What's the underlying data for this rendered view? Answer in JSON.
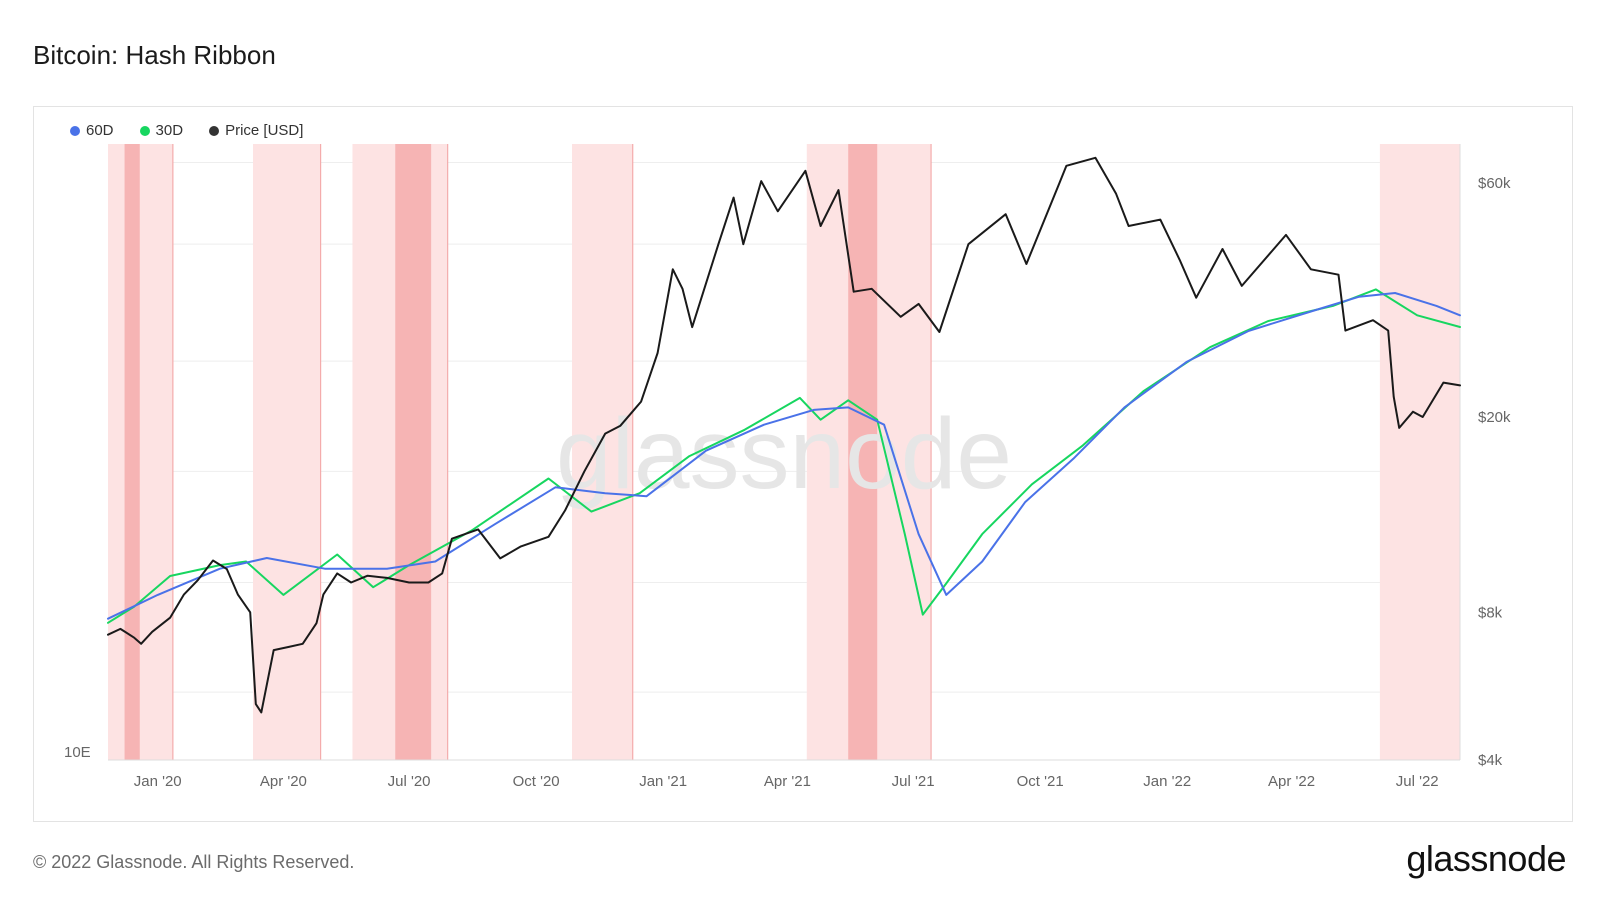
{
  "header": {
    "title": "Bitcoin: Hash Ribbon"
  },
  "footer": {
    "copyright": "© 2022 Glassnode. All Rights Reserved.",
    "logo": "glassnode"
  },
  "watermark": "glassnode",
  "colors": {
    "series_60d": "#4a72e8",
    "series_30d": "#17d660",
    "price": "#1a1a1a",
    "capitulation_light": "#fde3e3",
    "capitulation_dark": "#f6b4b4"
  },
  "chart_data": {
    "type": "line",
    "title": "Bitcoin: Hash Ribbon",
    "x_range": [
      "2019-11-26",
      "2022-08-01"
    ],
    "x_tick_labels": [
      {
        "date": "2020-01-01",
        "label": "Jan '20"
      },
      {
        "date": "2020-04-01",
        "label": "Apr '20"
      },
      {
        "date": "2020-07-01",
        "label": "Jul '20"
      },
      {
        "date": "2020-10-01",
        "label": "Oct '20"
      },
      {
        "date": "2021-01-01",
        "label": "Jan '21"
      },
      {
        "date": "2021-04-01",
        "label": "Apr '21"
      },
      {
        "date": "2021-07-01",
        "label": "Jul '21"
      },
      {
        "date": "2021-10-01",
        "label": "Oct '21"
      },
      {
        "date": "2022-01-01",
        "label": "Jan '22"
      },
      {
        "date": "2022-04-01",
        "label": "Apr '22"
      },
      {
        "date": "2022-07-01",
        "label": "Jul '22"
      }
    ],
    "left_axis": {
      "label_bottom": "10E"
    },
    "right_axis": {
      "scale": "log",
      "range": [
        4000,
        72000
      ],
      "ticks": [
        {
          "value": 60000,
          "label": "$60k"
        },
        {
          "value": 20000,
          "label": "$20k"
        },
        {
          "value": 8000,
          "label": "$8k"
        },
        {
          "value": 4000,
          "label": "$4k"
        }
      ]
    },
    "hash_axis": {
      "unit": "E (hashrate, log)",
      "range": [
        68,
        320
      ]
    },
    "grid": true,
    "legend_position": "top-left",
    "legend": [
      {
        "name": "60D",
        "color": "#4a72e8"
      },
      {
        "name": "30D",
        "color": "#17d660"
      },
      {
        "name": "Price [USD]",
        "color": "#333333"
      }
    ],
    "capitulation_bands": [
      {
        "start": "2019-11-26",
        "end": "2020-01-12",
        "shade": "light"
      },
      {
        "start": "2019-12-08",
        "end": "2019-12-19",
        "shade": "dark"
      },
      {
        "start": "2020-03-10",
        "end": "2020-04-28",
        "shade": "light"
      },
      {
        "start": "2020-05-21",
        "end": "2020-07-29",
        "shade": "light"
      },
      {
        "start": "2020-06-21",
        "end": "2020-07-17",
        "shade": "dark"
      },
      {
        "start": "2020-10-27",
        "end": "2020-12-10",
        "shade": "light"
      },
      {
        "start": "2021-04-15",
        "end": "2021-07-14",
        "shade": "light"
      },
      {
        "start": "2021-05-15",
        "end": "2021-06-05",
        "shade": "dark"
      },
      {
        "start": "2022-06-04",
        "end": "2022-08-01",
        "shade": "light"
      }
    ],
    "series": [
      {
        "name": "60D",
        "unit": "EH/s",
        "points": [
          [
            "2019-11-26",
            97
          ],
          [
            "2020-01-01",
            103
          ],
          [
            "2020-02-15",
            110
          ],
          [
            "2020-03-20",
            113
          ],
          [
            "2020-05-01",
            110
          ],
          [
            "2020-06-15",
            110
          ],
          [
            "2020-07-20",
            112
          ],
          [
            "2020-09-01",
            123
          ],
          [
            "2020-10-15",
            135
          ],
          [
            "2020-11-20",
            133
          ],
          [
            "2020-12-20",
            132
          ],
          [
            "2021-02-01",
            148
          ],
          [
            "2021-03-15",
            158
          ],
          [
            "2021-04-20",
            164
          ],
          [
            "2021-05-15",
            165
          ],
          [
            "2021-06-10",
            158
          ],
          [
            "2021-07-05",
            120
          ],
          [
            "2021-07-25",
            103
          ],
          [
            "2021-08-20",
            112
          ],
          [
            "2021-09-20",
            130
          ],
          [
            "2021-10-25",
            145
          ],
          [
            "2021-12-01",
            165
          ],
          [
            "2022-01-15",
            185
          ],
          [
            "2022-03-01",
            200
          ],
          [
            "2022-04-15",
            210
          ],
          [
            "2022-05-20",
            218
          ],
          [
            "2022-06-15",
            220
          ],
          [
            "2022-07-15",
            213
          ],
          [
            "2022-08-01",
            208
          ]
        ]
      },
      {
        "name": "30D",
        "unit": "EH/s",
        "points": [
          [
            "2019-11-26",
            96
          ],
          [
            "2019-12-15",
            100
          ],
          [
            "2020-01-10",
            108
          ],
          [
            "2020-02-15",
            111
          ],
          [
            "2020-03-05",
            112
          ],
          [
            "2020-04-01",
            103
          ],
          [
            "2020-05-10",
            114
          ],
          [
            "2020-06-05",
            105
          ],
          [
            "2020-07-01",
            111
          ],
          [
            "2020-08-15",
            121
          ],
          [
            "2020-10-10",
            138
          ],
          [
            "2020-11-10",
            127
          ],
          [
            "2020-12-15",
            133
          ],
          [
            "2021-01-20",
            146
          ],
          [
            "2021-03-01",
            156
          ],
          [
            "2021-04-10",
            169
          ],
          [
            "2021-04-25",
            160
          ],
          [
            "2021-05-15",
            168
          ],
          [
            "2021-06-05",
            160
          ],
          [
            "2021-06-25",
            120
          ],
          [
            "2021-07-08",
            98
          ],
          [
            "2021-07-25",
            106
          ],
          [
            "2021-08-20",
            120
          ],
          [
            "2021-09-25",
            136
          ],
          [
            "2021-11-01",
            150
          ],
          [
            "2021-12-15",
            172
          ],
          [
            "2022-02-01",
            192
          ],
          [
            "2022-03-15",
            205
          ],
          [
            "2022-05-01",
            213
          ],
          [
            "2022-06-01",
            222
          ],
          [
            "2022-07-01",
            208
          ],
          [
            "2022-08-01",
            202
          ]
        ]
      },
      {
        "name": "Price [USD]",
        "unit": "USD",
        "points": [
          [
            "2019-11-26",
            7200
          ],
          [
            "2019-12-05",
            7400
          ],
          [
            "2019-12-15",
            7100
          ],
          [
            "2019-12-20",
            6900
          ],
          [
            "2019-12-28",
            7300
          ],
          [
            "2020-01-10",
            7800
          ],
          [
            "2020-01-20",
            8700
          ],
          [
            "2020-01-30",
            9300
          ],
          [
            "2020-02-10",
            10200
          ],
          [
            "2020-02-20",
            9800
          ],
          [
            "2020-02-28",
            8700
          ],
          [
            "2020-03-08",
            8000
          ],
          [
            "2020-03-12",
            5200
          ],
          [
            "2020-03-16",
            5000
          ],
          [
            "2020-03-25",
            6700
          ],
          [
            "2020-04-05",
            6800
          ],
          [
            "2020-04-15",
            6900
          ],
          [
            "2020-04-25",
            7600
          ],
          [
            "2020-04-30",
            8700
          ],
          [
            "2020-05-10",
            9600
          ],
          [
            "2020-05-20",
            9200
          ],
          [
            "2020-06-01",
            9500
          ],
          [
            "2020-06-15",
            9400
          ],
          [
            "2020-07-01",
            9200
          ],
          [
            "2020-07-15",
            9200
          ],
          [
            "2020-07-25",
            9600
          ],
          [
            "2020-08-01",
            11300
          ],
          [
            "2020-08-20",
            11800
          ],
          [
            "2020-09-05",
            10300
          ],
          [
            "2020-09-20",
            10900
          ],
          [
            "2020-10-10",
            11400
          ],
          [
            "2020-10-22",
            12900
          ],
          [
            "2020-11-05",
            15500
          ],
          [
            "2020-11-20",
            18500
          ],
          [
            "2020-12-01",
            19200
          ],
          [
            "2020-12-16",
            21500
          ],
          [
            "2020-12-28",
            27000
          ],
          [
            "2021-01-08",
            40000
          ],
          [
            "2021-01-15",
            36500
          ],
          [
            "2021-01-22",
            30500
          ],
          [
            "2021-02-10",
            45000
          ],
          [
            "2021-02-21",
            56000
          ],
          [
            "2021-02-28",
            45000
          ],
          [
            "2021-03-13",
            60500
          ],
          [
            "2021-03-25",
            52500
          ],
          [
            "2021-04-14",
            63500
          ],
          [
            "2021-04-25",
            49000
          ],
          [
            "2021-05-08",
            58000
          ],
          [
            "2021-05-19",
            36000
          ],
          [
            "2021-06-01",
            36500
          ],
          [
            "2021-06-22",
            32000
          ],
          [
            "2021-07-05",
            34000
          ],
          [
            "2021-07-20",
            29800
          ],
          [
            "2021-08-10",
            45000
          ],
          [
            "2021-09-06",
            51800
          ],
          [
            "2021-09-21",
            41000
          ],
          [
            "2021-10-15",
            60000
          ],
          [
            "2021-10-20",
            65000
          ],
          [
            "2021-11-10",
            67500
          ],
          [
            "2021-11-25",
            57000
          ],
          [
            "2021-12-04",
            49000
          ],
          [
            "2021-12-27",
            50500
          ],
          [
            "2022-01-10",
            41800
          ],
          [
            "2022-01-22",
            35000
          ],
          [
            "2022-02-10",
            44000
          ],
          [
            "2022-02-24",
            37000
          ],
          [
            "2022-03-28",
            47000
          ],
          [
            "2022-04-15",
            40000
          ],
          [
            "2022-05-05",
            39000
          ],
          [
            "2022-05-10",
            30000
          ],
          [
            "2022-05-30",
            31500
          ],
          [
            "2022-06-10",
            30000
          ],
          [
            "2022-06-14",
            22000
          ],
          [
            "2022-06-18",
            19000
          ],
          [
            "2022-06-28",
            20500
          ],
          [
            "2022-07-05",
            20000
          ],
          [
            "2022-07-20",
            23500
          ],
          [
            "2022-08-01",
            23200
          ]
        ]
      }
    ]
  }
}
